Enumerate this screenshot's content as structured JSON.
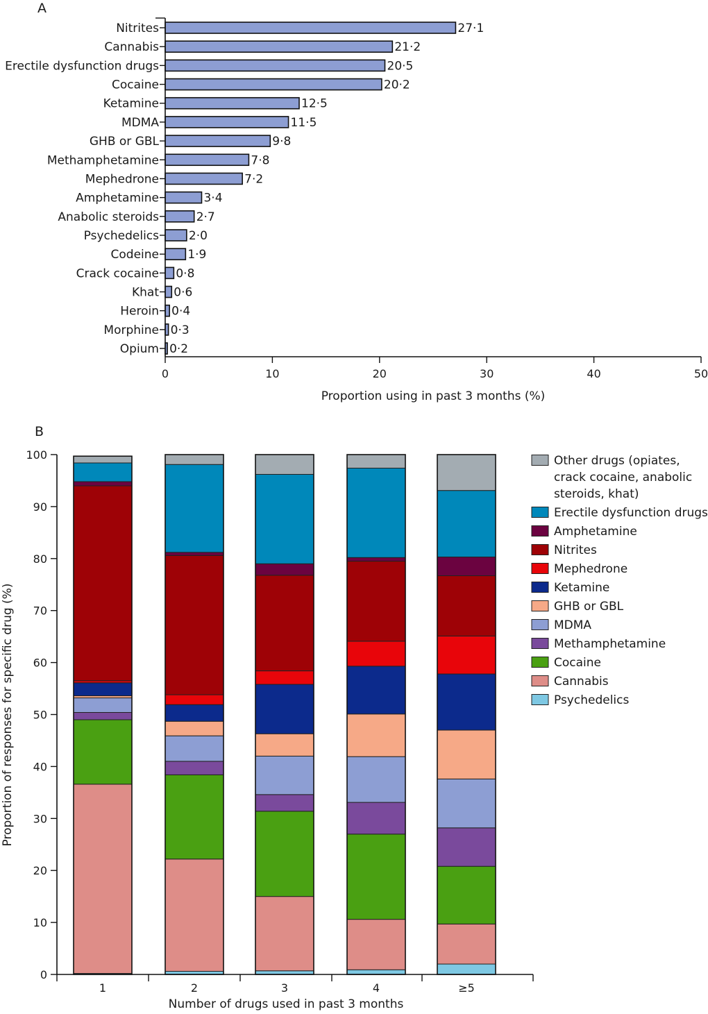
{
  "chart_data": [
    {
      "panel": "A",
      "type": "bar",
      "orientation": "horizontal",
      "categories": [
        "Nitrites",
        "Cannabis",
        "Erectile dysfunction drugs",
        "Cocaine",
        "Ketamine",
        "MDMA",
        "GHB or GBL",
        "Methamphetamine",
        "Mephedrone",
        "Amphetamine",
        "Anabolic steroids",
        "Psychedelics",
        "Codeine",
        "Crack cocaine",
        "Khat",
        "Heroin",
        "Morphine",
        "Opium"
      ],
      "values": [
        27.1,
        21.2,
        20.5,
        20.2,
        12.5,
        11.5,
        9.8,
        7.8,
        7.2,
        3.4,
        2.7,
        2.0,
        1.9,
        0.8,
        0.6,
        0.4,
        0.3,
        0.2
      ],
      "value_labels": [
        "27·1",
        "21·2",
        "20·5",
        "20·2",
        "12·5",
        "11·5",
        "9·8",
        "7·8",
        "7·2",
        "3·4",
        "2·7",
        "2·0",
        "1·9",
        "0·8",
        "0·6",
        "0·4",
        "0·3",
        "0·2"
      ],
      "xlabel": "Proportion using in past 3 months (%)",
      "ylabel": "",
      "xlim": [
        0,
        50
      ],
      "xticks": [
        0,
        10,
        20,
        30,
        40,
        50
      ],
      "bar_color": "#8d9ed3",
      "grid": false
    },
    {
      "panel": "B",
      "type": "bar",
      "stacked": true,
      "categories": [
        "1",
        "2",
        "3",
        "4",
        "≥5"
      ],
      "xlabel": "Number of drugs used in past 3 months",
      "ylabel": "Proportion of responses for specific drug (%)",
      "ylim": [
        0,
        100
      ],
      "yticks": [
        0,
        10,
        20,
        30,
        40,
        50,
        60,
        70,
        80,
        90,
        100
      ],
      "grid": false,
      "legend_position": "right",
      "series": [
        {
          "name": "Psychedelics",
          "color": "#7ec8e3",
          "values": [
            0.2,
            0.6,
            0.7,
            0.9,
            2.0
          ]
        },
        {
          "name": "Cannabis",
          "color": "#de8d88",
          "values": [
            36.4,
            21.6,
            14.3,
            9.7,
            7.7
          ]
        },
        {
          "name": "Cocaine",
          "color": "#4aa012",
          "values": [
            12.4,
            16.2,
            16.4,
            16.4,
            11.1
          ]
        },
        {
          "name": "Methamphetamine",
          "color": "#7a4a9c",
          "values": [
            1.4,
            2.6,
            3.2,
            6.1,
            7.4
          ]
        },
        {
          "name": "MDMA",
          "color": "#8d9ed3",
          "values": [
            2.8,
            4.9,
            7.4,
            8.8,
            9.4
          ]
        },
        {
          "name": "GHB or GBL",
          "color": "#f6a987",
          "values": [
            0.4,
            2.8,
            4.3,
            8.2,
            9.4
          ]
        },
        {
          "name": "Ketamine",
          "color": "#0c2a8c",
          "values": [
            2.5,
            3.2,
            9.5,
            9.2,
            10.8
          ]
        },
        {
          "name": "Mephedrone",
          "color": "#e8050a",
          "values": [
            0.4,
            1.9,
            2.6,
            4.8,
            7.3
          ]
        },
        {
          "name": "Nitrites",
          "color": "#9e0206",
          "values": [
            37.5,
            26.8,
            18.4,
            15.4,
            11.6
          ]
        },
        {
          "name": "Amphetamine",
          "color": "#6b0340",
          "values": [
            0.8,
            0.6,
            2.2,
            0.7,
            3.6
          ]
        },
        {
          "name": "Erectile dysfunction drugs",
          "color": "#0088ba",
          "values": [
            3.6,
            16.9,
            17.2,
            17.2,
            12.8
          ]
        },
        {
          "name": "Other drugs (opiates, crack cocaine, anabolic steroids, khat)",
          "color": "#a3acb2",
          "values": [
            1.3,
            1.9,
            3.8,
            2.6,
            6.9
          ]
        }
      ],
      "legend_lines": {
        "Psychedelics": [
          "Psychedelics"
        ],
        "Cannabis": [
          "Cannabis"
        ],
        "Cocaine": [
          "Cocaine"
        ],
        "Methamphetamine": [
          "Methamphetamine"
        ],
        "MDMA": [
          "MDMA"
        ],
        "GHB or GBL": [
          "GHB or GBL"
        ],
        "Ketamine": [
          "Ketamine"
        ],
        "Mephedrone": [
          "Mephedrone"
        ],
        "Nitrites": [
          "Nitrites"
        ],
        "Amphetamine": [
          "Amphetamine"
        ],
        "Erectile dysfunction drugs": [
          "Erectile dysfunction drugs"
        ],
        "Other drugs (opiates, crack cocaine, anabolic steroids, khat)": [
          "Other drugs (opiates,",
          "crack cocaine, anabolic",
          "steroids, khat)"
        ]
      }
    }
  ]
}
